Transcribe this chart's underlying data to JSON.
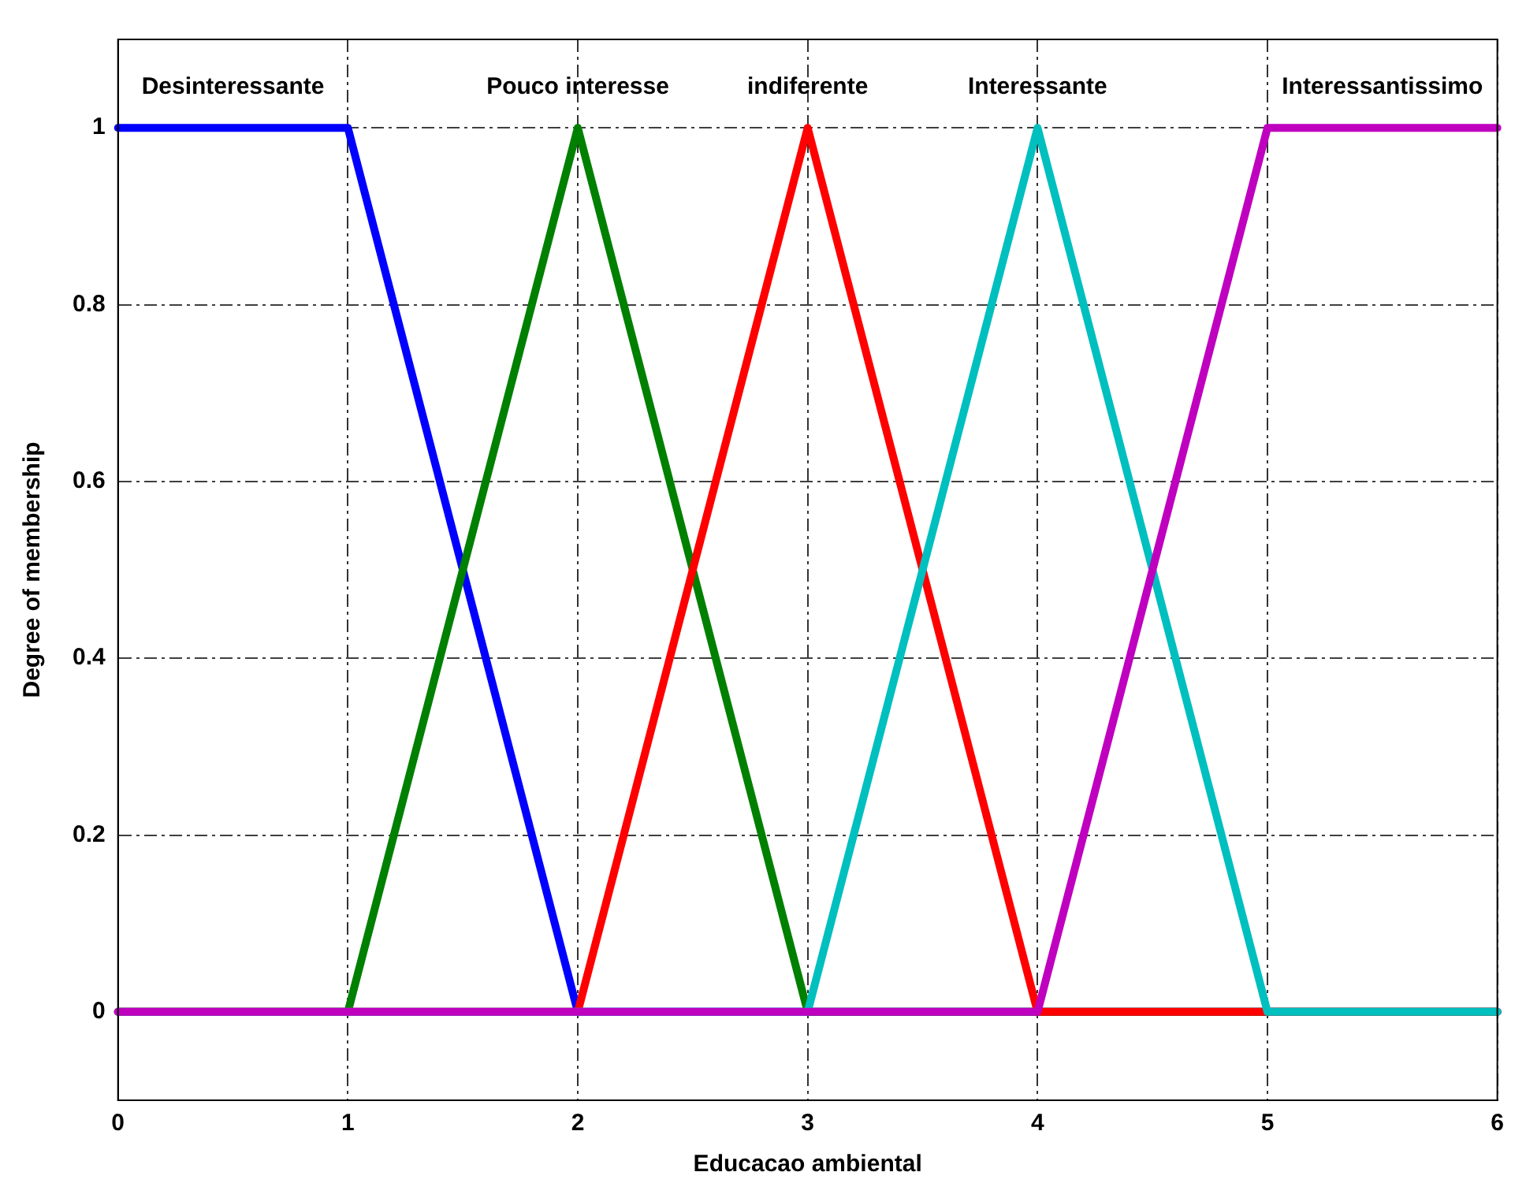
{
  "chart_data": {
    "type": "line",
    "xlabel": "Educacao ambiental",
    "ylabel": "Degree of membership",
    "series": [
      {
        "name": "Desinteressante",
        "color": "#0000ff",
        "x": [
          0,
          1,
          2,
          6
        ],
        "values": [
          1,
          1,
          0,
          0
        ]
      },
      {
        "name": "Pouco interesse",
        "color": "#008000",
        "x": [
          0,
          1,
          2,
          3,
          6
        ],
        "values": [
          0,
          0,
          1,
          0,
          0
        ]
      },
      {
        "name": "indiferente",
        "color": "#ff0000",
        "x": [
          0,
          2,
          3,
          4,
          6
        ],
        "values": [
          0,
          0,
          1,
          0,
          0
        ]
      },
      {
        "name": "Interessante",
        "color": "#00bfbf",
        "x": [
          0,
          3,
          4,
          5,
          6
        ],
        "values": [
          0,
          0,
          1,
          0,
          0
        ]
      },
      {
        "name": "Interessantissimo",
        "color": "#bf00bf",
        "x": [
          0,
          4,
          5,
          6
        ],
        "values": [
          0,
          0,
          1,
          1
        ]
      }
    ],
    "xlim": [
      0,
      6
    ],
    "ylim": [
      -0.1,
      1.1
    ],
    "xticks": [
      0,
      1,
      2,
      3,
      4,
      5,
      6
    ],
    "yticks": [
      0,
      0.2,
      0.4,
      0.6,
      0.8,
      1
    ],
    "grid": true
  }
}
